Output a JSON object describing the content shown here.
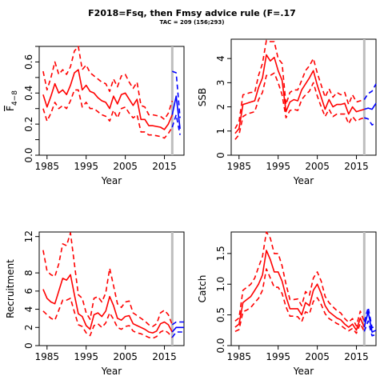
{
  "figure": {
    "title": "F2018=Fsq, then  Fmsy advice rule (F=.17",
    "subtitle": "TAC = 209 (156;293)"
  },
  "colors": {
    "history": "#ff0000",
    "forecast": "#0000ff",
    "assessment_year_line": "#bebebe",
    "axes": "#000000"
  },
  "chart_data": [
    {
      "type": "line",
      "id": "fbar",
      "xlabel": "Year",
      "ylabel": "F4−8",
      "ylabel_main": "F",
      "ylabel_sub": "4−8",
      "xlim": [
        1983,
        2020
      ],
      "ylim": [
        0,
        0.7
      ],
      "xticks": [
        1985,
        1995,
        2005,
        2015
      ],
      "yticks": [
        0,
        0.1,
        0.2,
        0.3,
        0.4,
        0.5,
        0.6,
        0.7
      ],
      "ytick_labels": [
        "0.0",
        "",
        "0.2",
        "",
        "0.4",
        "",
        "0.6",
        ""
      ],
      "vline_x": 2017,
      "history": {
        "x": [
          1984,
          1985,
          1986,
          1987,
          1988,
          1989,
          1990,
          1991,
          1992,
          1993,
          1994,
          1995,
          1996,
          1997,
          1998,
          1999,
          2000,
          2001,
          2002,
          2003,
          2004,
          2005,
          2006,
          2007,
          2008,
          2009,
          2010,
          2011,
          2012,
          2013,
          2014,
          2015,
          2016,
          2017
        ],
        "estimate": [
          0.39,
          0.31,
          0.38,
          0.46,
          0.4,
          0.42,
          0.39,
          0.45,
          0.53,
          0.55,
          0.42,
          0.45,
          0.41,
          0.4,
          0.37,
          0.35,
          0.34,
          0.3,
          0.38,
          0.33,
          0.39,
          0.4,
          0.36,
          0.32,
          0.36,
          0.23,
          0.23,
          0.19,
          0.19,
          0.185,
          0.18,
          0.165,
          0.2,
          0.26
        ],
        "lower": [
          0.3,
          0.22,
          0.27,
          0.34,
          0.3,
          0.32,
          0.3,
          0.35,
          0.42,
          0.42,
          0.31,
          0.34,
          0.3,
          0.3,
          0.28,
          0.26,
          0.25,
          0.22,
          0.29,
          0.24,
          0.3,
          0.31,
          0.27,
          0.24,
          0.26,
          0.15,
          0.15,
          0.13,
          0.13,
          0.125,
          0.12,
          0.11,
          0.14,
          0.18
        ],
        "upper": [
          0.54,
          0.42,
          0.5,
          0.6,
          0.52,
          0.55,
          0.52,
          0.57,
          0.67,
          0.7,
          0.55,
          0.58,
          0.53,
          0.51,
          0.49,
          0.47,
          0.46,
          0.41,
          0.49,
          0.44,
          0.51,
          0.52,
          0.47,
          0.43,
          0.47,
          0.32,
          0.31,
          0.26,
          0.26,
          0.255,
          0.25,
          0.23,
          0.27,
          0.35
        ]
      },
      "forecast": {
        "x": [
          2017,
          2018,
          2019
        ],
        "estimate": [
          0.26,
          0.38,
          0.17
        ],
        "lower": [
          0.18,
          0.26,
          0.13
        ],
        "upper": [
          0.54,
          0.53,
          0.24
        ]
      }
    },
    {
      "type": "line",
      "id": "ssb",
      "xlabel": "Year",
      "ylabel": "SSB",
      "xlim": [
        1983,
        2020
      ],
      "ylim": [
        0,
        4.8
      ],
      "xticks": [
        1985,
        1995,
        2005,
        2015
      ],
      "yticks": [
        0,
        1,
        2,
        3,
        4
      ],
      "ytick_labels": [
        "0",
        "1",
        "2",
        "3",
        "4"
      ],
      "vline_x": 2017,
      "history": {
        "x": [
          1984,
          1985,
          1986,
          1987,
          1988,
          1989,
          1990,
          1991,
          1992,
          1993,
          1994,
          1995,
          1996,
          1997,
          1998,
          1999,
          2000,
          2001,
          2002,
          2003,
          2004,
          2005,
          2006,
          2007,
          2008,
          2009,
          2010,
          2011,
          2012,
          2013,
          2014,
          2015,
          2016,
          2017
        ],
        "estimate": [
          0.9,
          1.1,
          2.1,
          2.15,
          2.2,
          2.25,
          2.8,
          3.2,
          4.15,
          3.9,
          4.05,
          3.5,
          3.1,
          1.8,
          2.2,
          2.3,
          2.25,
          2.7,
          2.95,
          3.2,
          3.5,
          2.9,
          2.4,
          1.9,
          2.3,
          2.0,
          2.1,
          2.1,
          2.15,
          1.7,
          2.0,
          1.8,
          1.85,
          1.9
        ],
        "lower": [
          0.65,
          0.85,
          1.6,
          1.7,
          1.75,
          1.8,
          2.3,
          2.6,
          3.3,
          3.3,
          3.4,
          3.0,
          2.5,
          1.55,
          1.85,
          1.9,
          1.85,
          2.3,
          2.5,
          2.65,
          3.0,
          2.45,
          2.0,
          1.6,
          1.9,
          1.6,
          1.7,
          1.7,
          1.7,
          1.3,
          1.6,
          1.4,
          1.5,
          1.55
        ],
        "upper": [
          1.1,
          1.4,
          2.5,
          2.55,
          2.6,
          2.6,
          3.3,
          3.8,
          4.75,
          4.7,
          4.7,
          4.0,
          3.8,
          2.1,
          2.6,
          2.7,
          2.7,
          3.1,
          3.5,
          3.7,
          4.0,
          3.4,
          2.9,
          2.4,
          2.75,
          2.4,
          2.6,
          2.5,
          2.6,
          2.1,
          2.5,
          2.2,
          2.25,
          2.3
        ]
      },
      "forecast": {
        "x": [
          2017,
          2018,
          2019,
          2020
        ],
        "estimate": [
          1.9,
          1.95,
          1.9,
          2.15
        ],
        "lower": [
          1.55,
          1.5,
          1.25,
          1.35
        ],
        "upper": [
          2.3,
          2.55,
          2.65,
          2.95
        ]
      }
    },
    {
      "type": "line",
      "id": "recruitment",
      "xlabel": "Year",
      "ylabel": "Recruitment",
      "xlim": [
        1983,
        2020
      ],
      "ylim": [
        0,
        12.5
      ],
      "xticks": [
        1985,
        1995,
        2005,
        2015
      ],
      "yticks": [
        0,
        2,
        4,
        6,
        8,
        12
      ],
      "ytick_labels": [
        "0",
        "2",
        "4",
        "6",
        "8",
        "12"
      ],
      "vline_x": 2017,
      "history": {
        "x": [
          1984,
          1985,
          1986,
          1987,
          1988,
          1989,
          1990,
          1991,
          1992,
          1993,
          1994,
          1995,
          1996,
          1997,
          1998,
          1999,
          2000,
          2001,
          2002,
          2003,
          2004,
          2005,
          2006,
          2007,
          2008,
          2009,
          2010,
          2011,
          2012,
          2013,
          2014,
          2015,
          2016,
          2017
        ],
        "estimate": [
          6.2,
          5.2,
          4.8,
          4.6,
          6.0,
          7.4,
          7.2,
          7.8,
          5.6,
          3.5,
          3.2,
          2.2,
          1.8,
          3.4,
          3.6,
          3.2,
          3.8,
          5.4,
          4.4,
          3.0,
          2.8,
          3.2,
          3.3,
          2.4,
          2.2,
          2.0,
          1.8,
          1.5,
          1.4,
          1.6,
          2.4,
          2.6,
          2.3,
          1.5
        ],
        "lower": [
          3.8,
          3.4,
          3.0,
          2.8,
          3.9,
          5.0,
          5.0,
          5.2,
          3.7,
          2.3,
          2.1,
          1.4,
          1.1,
          2.2,
          2.4,
          2.0,
          2.5,
          3.6,
          2.9,
          2.0,
          1.8,
          2.1,
          2.2,
          1.6,
          1.4,
          1.3,
          1.1,
          0.9,
          0.8,
          1.0,
          1.5,
          1.7,
          1.4,
          0.9
        ],
        "upper": [
          10.5,
          8.2,
          7.8,
          7.6,
          9.0,
          11.2,
          11.0,
          12.4,
          9.0,
          5.6,
          5.2,
          3.6,
          2.9,
          5.2,
          5.4,
          4.8,
          5.8,
          8.5,
          6.6,
          4.6,
          4.2,
          4.8,
          4.9,
          3.6,
          3.3,
          3.0,
          2.7,
          2.3,
          2.1,
          2.4,
          3.6,
          3.9,
          3.4,
          2.3
        ]
      },
      "forecast": {
        "x": [
          2017,
          2018,
          2019,
          2020
        ],
        "estimate": [
          1.5,
          2.0,
          2.0,
          2.0
        ],
        "lower": [
          0.9,
          1.5,
          1.5,
          1.5
        ],
        "upper": [
          2.3,
          2.6,
          2.6,
          2.6
        ]
      }
    },
    {
      "type": "line",
      "id": "catch",
      "xlabel": "Year",
      "ylabel": "Catch",
      "xlim": [
        1983,
        2020
      ],
      "ylim": [
        0,
        1.85
      ],
      "xticks": [
        1985,
        1995,
        2005,
        2015
      ],
      "yticks": [
        0,
        0.5,
        1.0,
        1.5
      ],
      "ytick_labels": [
        "0.0",
        "0.5",
        "1.0",
        "1.5"
      ],
      "vline_x": 2017,
      "history": {
        "x": [
          1984,
          1985,
          1986,
          1987,
          1988,
          1989,
          1990,
          1991,
          1992,
          1993,
          1994,
          1995,
          1996,
          1997,
          1998,
          1999,
          2000,
          2001,
          2002,
          2003,
          2004,
          2005,
          2006,
          2007,
          2008,
          2009,
          2010,
          2011,
          2012,
          2013,
          2014,
          2015,
          2016,
          2017
        ],
        "estimate": [
          0.3,
          0.35,
          0.7,
          0.75,
          0.8,
          0.9,
          1.0,
          1.15,
          1.55,
          1.4,
          1.2,
          1.2,
          1.05,
          0.8,
          0.6,
          0.6,
          0.6,
          0.5,
          0.7,
          0.65,
          0.9,
          1.0,
          0.85,
          0.65,
          0.55,
          0.5,
          0.45,
          0.42,
          0.35,
          0.3,
          0.35,
          0.25,
          0.45,
          0.3
        ],
        "lower": [
          0.23,
          0.26,
          0.55,
          0.58,
          0.62,
          0.7,
          0.77,
          0.9,
          1.25,
          1.1,
          0.95,
          0.95,
          0.85,
          0.63,
          0.48,
          0.48,
          0.47,
          0.39,
          0.55,
          0.52,
          0.72,
          0.78,
          0.67,
          0.52,
          0.44,
          0.4,
          0.36,
          0.33,
          0.28,
          0.24,
          0.28,
          0.2,
          0.36,
          0.23
        ],
        "upper": [
          0.4,
          0.45,
          0.9,
          0.95,
          1.0,
          1.1,
          1.28,
          1.45,
          1.85,
          1.75,
          1.5,
          1.5,
          1.3,
          1.0,
          0.75,
          0.75,
          0.76,
          0.65,
          0.88,
          0.82,
          1.1,
          1.2,
          1.05,
          0.8,
          0.7,
          0.63,
          0.57,
          0.53,
          0.44,
          0.38,
          0.44,
          0.32,
          0.56,
          0.39
        ]
      },
      "forecast": {
        "x": [
          2017,
          2018,
          2019,
          2020
        ],
        "estimate": [
          0.3,
          0.55,
          0.22,
          0.25
        ],
        "lower": [
          0.23,
          0.4,
          0.16,
          0.18
        ],
        "upper": [
          0.39,
          0.62,
          0.29,
          0.32
        ]
      }
    }
  ]
}
